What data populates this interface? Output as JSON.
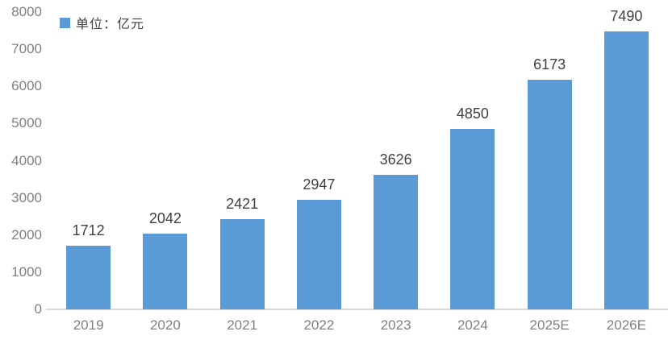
{
  "legend": {
    "label": "单位：亿元",
    "swatch_color": "#5B9BD5"
  },
  "colors": {
    "bar": "#5B9BD5",
    "axis_line": "#D9D9D9",
    "tick_label": "#7F7F7F",
    "value_label": "#404040"
  },
  "chart_data": {
    "type": "bar",
    "categories": [
      "2019",
      "2020",
      "2021",
      "2022",
      "2023",
      "2024",
      "2025E",
      "2026E"
    ],
    "values": [
      1712,
      2042,
      2421,
      2947,
      3626,
      4850,
      6173,
      7490
    ],
    "title": "",
    "xlabel": "",
    "ylabel": "",
    "ylim": [
      0,
      8000
    ],
    "ytick_step": 1000,
    "yticks": [
      0,
      1000,
      2000,
      3000,
      4000,
      5000,
      6000,
      7000,
      8000
    ],
    "data_labels": true,
    "grid": false,
    "legend_entries": [
      "单位：亿元"
    ],
    "legend_position": "top-left",
    "bar_color": "#5B9BD5"
  }
}
